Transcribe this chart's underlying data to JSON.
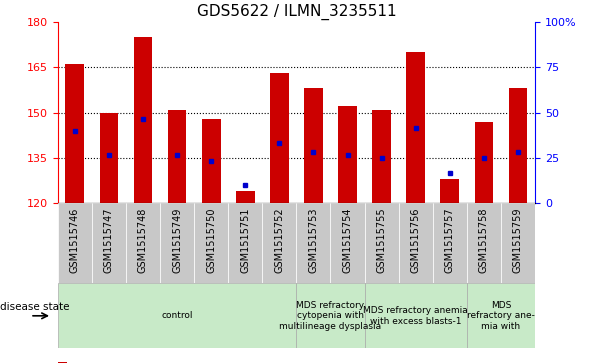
{
  "title": "GDS5622 / ILMN_3235511",
  "samples": [
    "GSM1515746",
    "GSM1515747",
    "GSM1515748",
    "GSM1515749",
    "GSM1515750",
    "GSM1515751",
    "GSM1515752",
    "GSM1515753",
    "GSM1515754",
    "GSM1515755",
    "GSM1515756",
    "GSM1515757",
    "GSM1515758",
    "GSM1515759"
  ],
  "counts": [
    166,
    150,
    175,
    151,
    148,
    124,
    163,
    158,
    152,
    151,
    170,
    128,
    147,
    158
  ],
  "percentile_values": [
    144,
    136,
    148,
    136,
    134,
    126,
    140,
    137,
    136,
    135,
    145,
    130,
    135,
    137
  ],
  "ylim_left": [
    120,
    180
  ],
  "ylim_right": [
    0,
    100
  ],
  "left_ticks": [
    120,
    135,
    150,
    165,
    180
  ],
  "right_ticks": [
    0,
    25,
    50,
    75,
    100
  ],
  "bar_color": "#cc0000",
  "dot_color": "#0000cc",
  "background_plot": "#ffffff",
  "tick_box_color": "#c8c8c8",
  "disease_group_color": "#c8eac8",
  "disease_group_border": "#aaaaaa",
  "groups": [
    {
      "label": "control",
      "start": 0,
      "end": 7
    },
    {
      "label": "MDS refractory\ncytopenia with\nmultilineage dysplasia",
      "start": 7,
      "end": 9
    },
    {
      "label": "MDS refractory anemia\nwith excess blasts-1",
      "start": 9,
      "end": 12
    },
    {
      "label": "MDS\nrefractory ane-\nmia with",
      "start": 12,
      "end": 14
    }
  ],
  "title_fontsize": 11,
  "tick_fontsize": 8,
  "sample_fontsize": 7,
  "disease_fontsize": 6.5,
  "legend_fontsize": 8,
  "disease_state_label": "disease state"
}
